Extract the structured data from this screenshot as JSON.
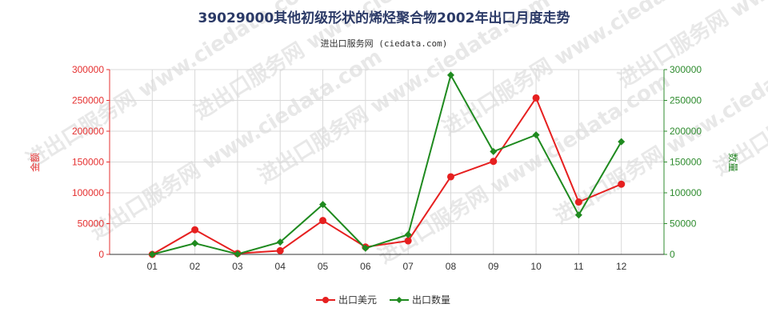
{
  "chart_data": {
    "type": "line",
    "title": "39029000其他初级形状的烯烃聚合物2002年出口月度走势",
    "subtitle": "进出口服务网 (ciedata.com)",
    "watermark": "进出口服务网 www.ciedata.com",
    "categories": [
      "01",
      "02",
      "03",
      "04",
      "05",
      "06",
      "07",
      "08",
      "09",
      "10",
      "11",
      "12"
    ],
    "ylabel_left": "金额",
    "ylabel_right": "数量",
    "ylim_left": [
      0,
      300000
    ],
    "ylim_right": [
      0,
      300000
    ],
    "yticks_left": [
      "0",
      "50000",
      "100000",
      "150000",
      "200000",
      "250000",
      "300000"
    ],
    "yticks_right": [
      "0",
      "50000",
      "100000",
      "150000",
      "200000",
      "250000",
      "300000"
    ],
    "grid": true,
    "legend_position": "bottom",
    "series": [
      {
        "name": "出口美元",
        "axis": "left",
        "color": "#e62020",
        "marker": "circle",
        "values": [
          0,
          40000,
          1500,
          6000,
          55000,
          12000,
          22000,
          126000,
          151000,
          254000,
          85000,
          114000
        ]
      },
      {
        "name": "出口数量",
        "axis": "right",
        "color": "#1f8a1f",
        "marker": "diamond",
        "values": [
          0,
          18000,
          500,
          20000,
          81000,
          10000,
          32000,
          291000,
          167000,
          194000,
          64000,
          183000
        ]
      }
    ]
  }
}
